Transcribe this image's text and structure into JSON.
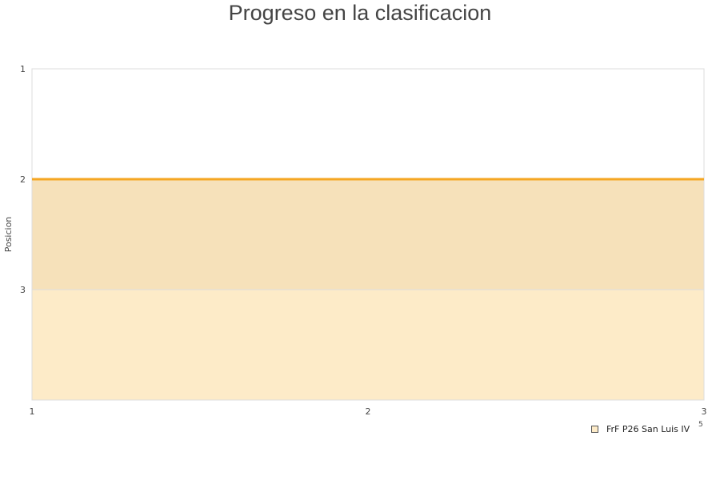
{
  "chart_data": {
    "type": "area",
    "title": "Progreso en la clasificacion",
    "xlabel": "",
    "ylabel": "Posicion",
    "x": [
      1,
      2,
      3
    ],
    "xlim": [
      1,
      3
    ],
    "ylim": [
      4,
      1
    ],
    "y_inverted": true,
    "x_ticks": [
      "1",
      "2",
      "3"
    ],
    "y_ticks": [
      "1",
      "2",
      "3"
    ],
    "series": [
      {
        "name": "FrF P26 San Luis IV",
        "values": [
          2,
          2,
          2
        ],
        "color": "#f5a623",
        "fill": "#fdebc8"
      }
    ],
    "legend_position": "bottom-right",
    "legend_extra": "5",
    "grid": true
  }
}
